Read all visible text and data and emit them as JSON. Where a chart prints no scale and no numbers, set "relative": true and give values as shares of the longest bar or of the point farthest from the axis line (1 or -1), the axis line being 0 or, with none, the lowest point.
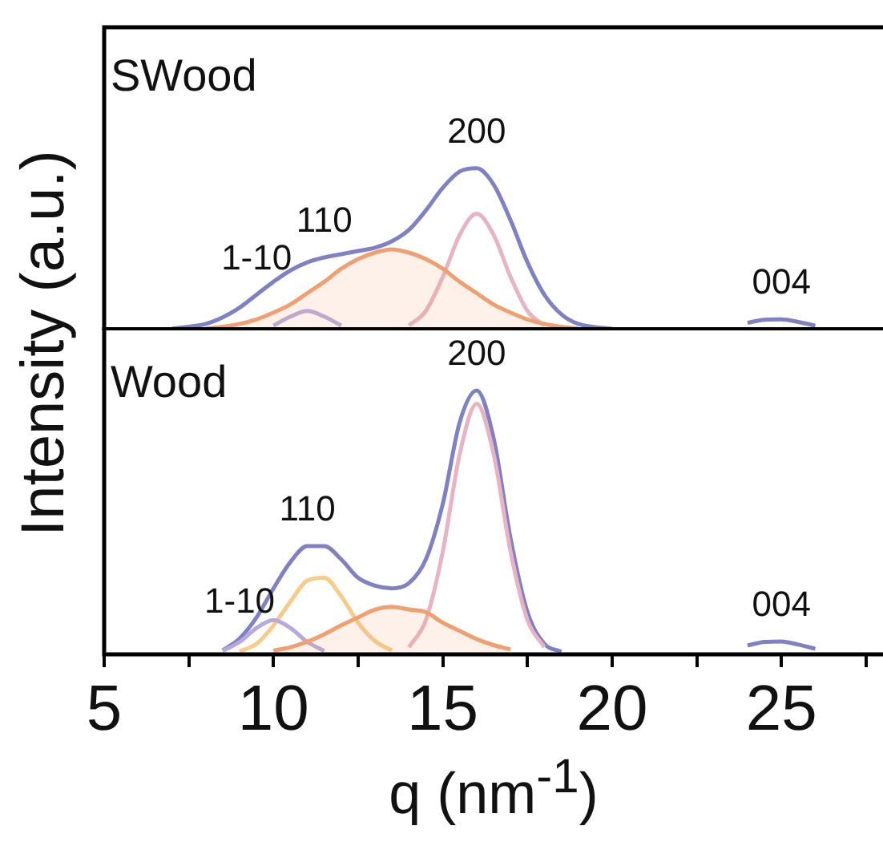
{
  "chart_data": [
    {
      "type": "line",
      "title": "SWood",
      "ylabel": "Intensity (a.u.)",
      "relative": true,
      "xlim": [
        5,
        28
      ],
      "legend": false,
      "grid": false,
      "marker": "none",
      "tick_labels": false,
      "x": [
        7,
        8,
        8.5,
        9,
        9.5,
        10,
        10.5,
        11,
        11.5,
        12,
        12.5,
        13,
        13.5,
        14,
        14.5,
        15,
        15.5,
        16,
        16.5,
        17,
        17.5,
        18,
        18.5,
        19,
        20,
        21,
        22,
        23,
        24,
        24.5,
        25,
        25.5,
        26
      ],
      "series": [
        {
          "type": "area",
          "color": "#f0a070",
          "values": [
            null,
            0.011,
            0.022,
            0.04,
            0.068,
            0.11,
            0.16,
            0.23,
            0.3,
            0.38,
            0.44,
            0.48,
            0.5,
            0.48,
            0.44,
            0.38,
            0.3,
            0.23,
            0.16,
            0.11,
            0.068,
            0.04,
            0.022,
            0.011,
            null,
            null,
            null,
            null,
            null,
            null,
            null,
            null,
            null
          ]
        },
        {
          "type": "line",
          "color": "#b8a8dc",
          "values": [
            null,
            null,
            null,
            null,
            null,
            0.03,
            0.085,
            0.12,
            0.085,
            0.03,
            null,
            null,
            null,
            null,
            null,
            null,
            null,
            null,
            null,
            null,
            null,
            null,
            null,
            null,
            null,
            null,
            null,
            null,
            null,
            null,
            null,
            null,
            null
          ]
        },
        {
          "type": "line",
          "color": "#e8b4c4",
          "values": [
            null,
            null,
            null,
            null,
            null,
            null,
            null,
            null,
            null,
            null,
            null,
            null,
            null,
            0.03,
            0.12,
            0.33,
            0.59,
            0.72,
            0.59,
            0.33,
            0.12,
            0.03,
            null,
            null,
            null,
            null,
            null,
            null,
            null,
            null,
            null,
            null,
            null
          ]
        },
        {
          "type": "line",
          "color": "#8080c4",
          "values": [
            0.01,
            0.04,
            0.08,
            0.14,
            0.22,
            0.3,
            0.37,
            0.42,
            0.45,
            0.47,
            0.49,
            0.51,
            0.55,
            0.62,
            0.74,
            0.88,
            0.98,
            1,
            0.9,
            0.68,
            0.42,
            0.22,
            0.1,
            0.04,
            0.01,
            null,
            null,
            null,
            0.047,
            0.066,
            0.068,
            0.052,
            0.029
          ]
        }
      ],
      "annotations": [
        {
          "text": "1-10",
          "x": 9.5,
          "y": 0.22
        },
        {
          "text": "110",
          "x": 11.5,
          "y": 0.45
        },
        {
          "text": "200",
          "x": 16,
          "y": 1
        },
        {
          "text": "004",
          "x": 25,
          "y": 0.068
        }
      ]
    },
    {
      "type": "line",
      "title": "Wood",
      "xlabel": "q (nm$^{-1}$)",
      "relative": true,
      "xlim": [
        5,
        28
      ],
      "legend": false,
      "grid": false,
      "marker": "none",
      "tick_labels": "x",
      "xticks": [
        5,
        {
          "value": 7.5,
          "label": null
        },
        10,
        {
          "value": 12.5,
          "label": null
        },
        15,
        {
          "value": 17.5,
          "label": null
        },
        20,
        {
          "value": 22.5,
          "label": null
        },
        25,
        {
          "value": 27.5,
          "label": null
        }
      ],
      "x": [
        8.5,
        9,
        9.5,
        10,
        10.5,
        11,
        11.5,
        12,
        12.5,
        13,
        13.5,
        14,
        14.5,
        15,
        15.5,
        16,
        16.5,
        17,
        17.5,
        18,
        18.5,
        19,
        20,
        21,
        22,
        23,
        24,
        24.5,
        25,
        25.5,
        26
      ],
      "series": [
        {
          "type": "area",
          "color": "#f0a070",
          "values": [
            null,
            null,
            null,
            0.014,
            0.027,
            0.048,
            0.076,
            0.11,
            0.14,
            0.17,
            0.18,
            0.17,
            0.16,
            0.12,
            0.089,
            0.058,
            0.035,
            0.019,
            null,
            null,
            null,
            null,
            null,
            null,
            null,
            null,
            null,
            null,
            null,
            null,
            null
          ]
        },
        {
          "type": "line",
          "color": "#b8a8dc",
          "values": [
            0.013,
            0.047,
            0.1,
            0.13,
            0.1,
            0.047,
            0.013,
            null,
            null,
            null,
            null,
            null,
            null,
            null,
            null,
            null,
            null,
            null,
            null,
            null,
            null,
            null,
            null,
            null,
            null,
            null,
            null,
            null,
            null,
            null,
            null
          ]
        },
        {
          "type": "line",
          "color": "#f8cc88",
          "values": [
            null,
            0.011,
            0.04,
            0.11,
            0.2,
            0.28,
            0.29,
            0.22,
            0.12,
            0.05,
            0.015,
            null,
            null,
            null,
            null,
            null,
            null,
            null,
            null,
            null,
            null,
            null,
            null,
            null,
            null,
            null,
            null,
            null,
            null,
            null,
            null
          ]
        },
        {
          "type": "line",
          "color": "#e8b4c4",
          "values": [
            null,
            null,
            null,
            null,
            null,
            null,
            null,
            null,
            null,
            null,
            null,
            0.027,
            0.13,
            0.39,
            0.76,
            0.95,
            0.76,
            0.39,
            0.13,
            0.027,
            null,
            null,
            null,
            null,
            null,
            null,
            null,
            null,
            null,
            null,
            null
          ]
        },
        {
          "type": "line",
          "color": "#8080c4",
          "values": [
            0.015,
            0.06,
            0.14,
            0.25,
            0.35,
            0.41,
            0.41,
            0.36,
            0.29,
            0.26,
            0.25,
            0.27,
            0.36,
            0.57,
            0.88,
            1,
            0.82,
            0.44,
            0.16,
            0.04,
            0.01,
            null,
            null,
            null,
            null,
            null,
            0.034,
            0.047,
            0.049,
            0.037,
            0.021
          ]
        }
      ],
      "annotations": [
        {
          "text": "1-10",
          "x": 9,
          "y": 0.06
        },
        {
          "text": "110",
          "x": 11,
          "y": 0.41
        },
        {
          "text": "200",
          "x": 16,
          "y": 1
        },
        {
          "text": "004",
          "x": 25,
          "y": 0.049
        }
      ]
    }
  ]
}
